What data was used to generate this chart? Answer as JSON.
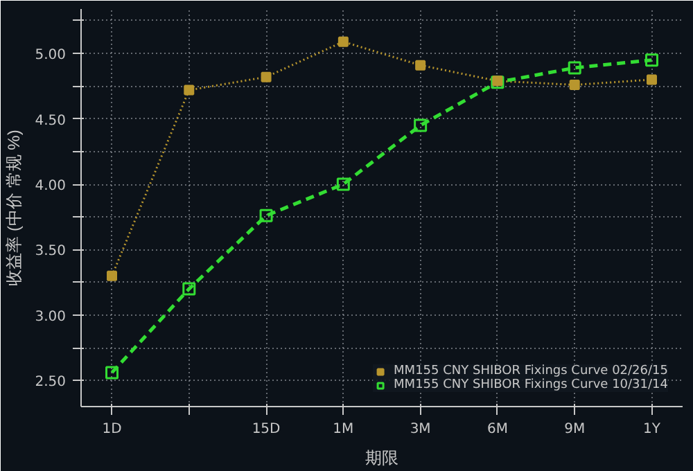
{
  "chart_data": {
    "type": "line",
    "xlabel": "期限",
    "ylabel": "收益率 (中价 常规 %)",
    "categories": [
      "1D",
      null,
      "15D",
      "1M",
      "3M",
      "6M",
      "9M",
      "1Y"
    ],
    "ylim": [
      2.3,
      5.34
    ],
    "yticks": [
      {
        "value": 2.5,
        "label": "2.50"
      },
      {
        "value": 2.75,
        "label": null
      },
      {
        "value": 3.0,
        "label": "3.00"
      },
      {
        "value": 3.25,
        "label": null
      },
      {
        "value": 3.5,
        "label": "3.50"
      },
      {
        "value": 3.75,
        "label": null
      },
      {
        "value": 4.0,
        "label": "4.00"
      },
      {
        "value": 4.25,
        "label": null
      },
      {
        "value": 4.5,
        "label": "4.50"
      },
      {
        "value": 4.75,
        "label": null
      },
      {
        "value": 5.0,
        "label": "5.00"
      },
      {
        "value": 5.25,
        "label": null
      }
    ],
    "grid": true,
    "legend": "bottom right",
    "series": [
      {
        "name": "MM155 CNY SHIBOR Fixings Curve 02/26/15",
        "color": "#b8962e",
        "line_style": "dotted",
        "marker": "square",
        "values": [
          3.3,
          4.72,
          4.82,
          5.09,
          4.91,
          4.79,
          4.76,
          4.8
        ]
      },
      {
        "name": "MM155 CNY SHIBOR Fixings Curve 10/31/14",
        "color": "#33dd33",
        "line_style": "dashed",
        "marker": "square",
        "values": [
          2.56,
          3.2,
          3.76,
          4.0,
          4.45,
          4.78,
          4.89,
          4.95
        ]
      }
    ]
  }
}
